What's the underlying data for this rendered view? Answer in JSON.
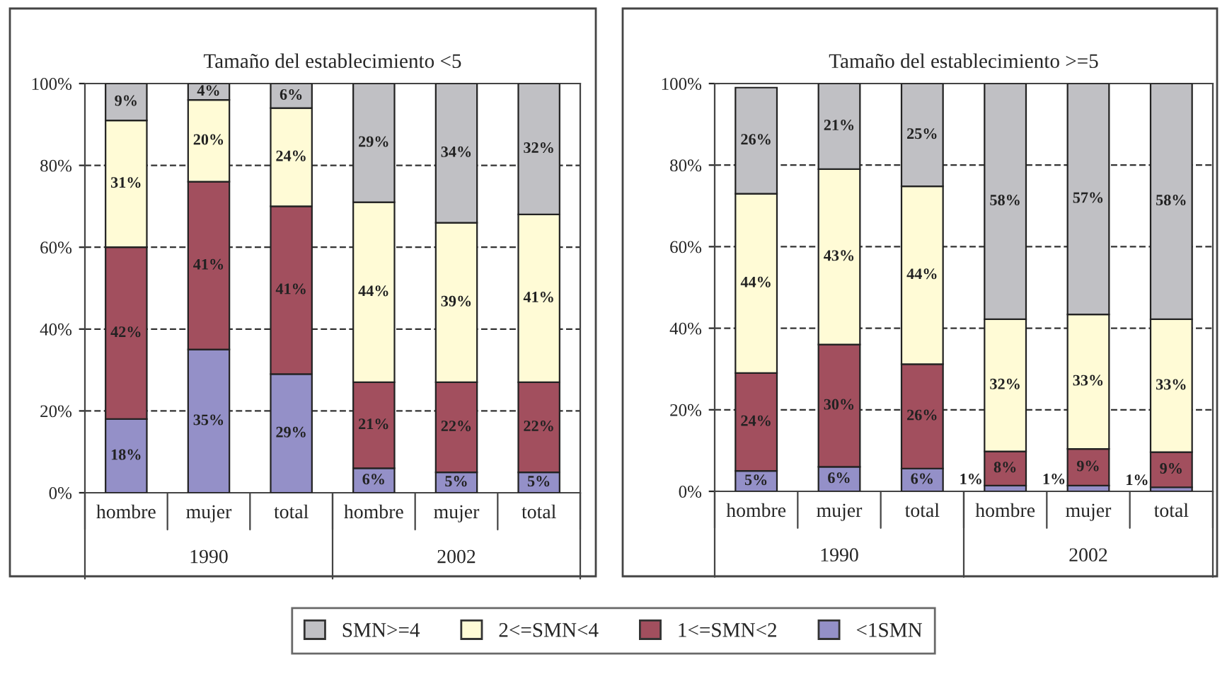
{
  "chart_data": [
    {
      "type": "bar",
      "title": "Tamaño del establecimiento <5",
      "stacked": true,
      "categories": [
        "hombre",
        "mujer",
        "total",
        "hombre",
        "mujer",
        "total"
      ],
      "annotations": [
        "1990",
        "2002"
      ],
      "ylim": [
        0,
        100
      ],
      "yticks": [
        {
          "value": 0,
          "label": "0%"
        },
        {
          "value": 20,
          "label": "20%"
        },
        {
          "value": 40,
          "label": "40%"
        },
        {
          "value": 60,
          "label": "60%"
        },
        {
          "value": 80,
          "label": "80%"
        },
        {
          "value": 100,
          "label": "100%"
        }
      ],
      "grid": "y",
      "legend": "bottom",
      "series": [
        {
          "name": "<1SMN",
          "color": "#9490c8",
          "values": [
            18,
            35,
            29,
            6,
            5,
            5
          ],
          "value_labels": [
            "18%",
            "35%",
            "29%",
            "6%",
            "5%",
            "5%"
          ]
        },
        {
          "name": "1<=SMN<2",
          "color": "#a24f5e",
          "values": [
            42,
            41,
            41,
            21,
            22,
            22
          ],
          "value_labels": [
            "42%",
            "41%",
            "41%",
            "21%",
            "22%",
            "22%"
          ]
        },
        {
          "name": "2<=SMN<4",
          "color": "#fffbd6",
          "values": [
            31,
            20,
            24,
            44,
            39,
            41
          ],
          "value_labels": [
            "31%",
            "20%",
            "24%",
            "44%",
            "39%",
            "41%"
          ]
        },
        {
          "name": "SMN>=4",
          "color": "#c0c0c4",
          "values": [
            9,
            4,
            6,
            29,
            34,
            32
          ],
          "value_labels": [
            "9%",
            "4%",
            "6%",
            "29%",
            "34%",
            "32%"
          ]
        }
      ]
    },
    {
      "type": "bar",
      "title": "Tamaño del establecimiento >=5",
      "stacked": true,
      "categories": [
        "hombre",
        "mujer",
        "total",
        "hombre",
        "mujer",
        "total"
      ],
      "annotations": [
        "1990",
        "2002"
      ],
      "ylim": [
        0,
        100
      ],
      "yticks": [
        {
          "value": 0,
          "label": "0%"
        },
        {
          "value": 20,
          "label": "20%"
        },
        {
          "value": 40,
          "label": "40%"
        },
        {
          "value": 60,
          "label": "60%"
        },
        {
          "value": 80,
          "label": "80%"
        },
        {
          "value": 100,
          "label": "100%"
        }
      ],
      "grid": "y",
      "legend": "bottom",
      "series": [
        {
          "color": "#9490c8",
          "values": [
            5,
            6,
            5.6,
            1.4,
            1.4,
            1
          ],
          "value_labels": [
            "5%",
            "6%",
            "6%",
            "1%",
            "1%",
            "1%"
          ]
        },
        {
          "color": "#a24f5e",
          "values": [
            24,
            30,
            25.6,
            8.4,
            9,
            8.6
          ],
          "value_labels": [
            "24%",
            "30%",
            "26%",
            "8%",
            "9%",
            "9%"
          ]
        },
        {
          "color": "#fffbd6",
          "values": [
            44,
            43,
            43.6,
            32.4,
            33,
            32.6
          ],
          "value_labels": [
            "44%",
            "43%",
            "44%",
            "32%",
            "33%",
            "33%"
          ]
        },
        {
          "color": "#c0c0c4",
          "values": [
            26,
            21,
            25.2,
            57.8,
            56.6,
            57.8
          ],
          "value_labels": [
            "26%",
            "21%",
            "25%",
            "58%",
            "57%",
            "58%"
          ]
        }
      ]
    }
  ]
}
